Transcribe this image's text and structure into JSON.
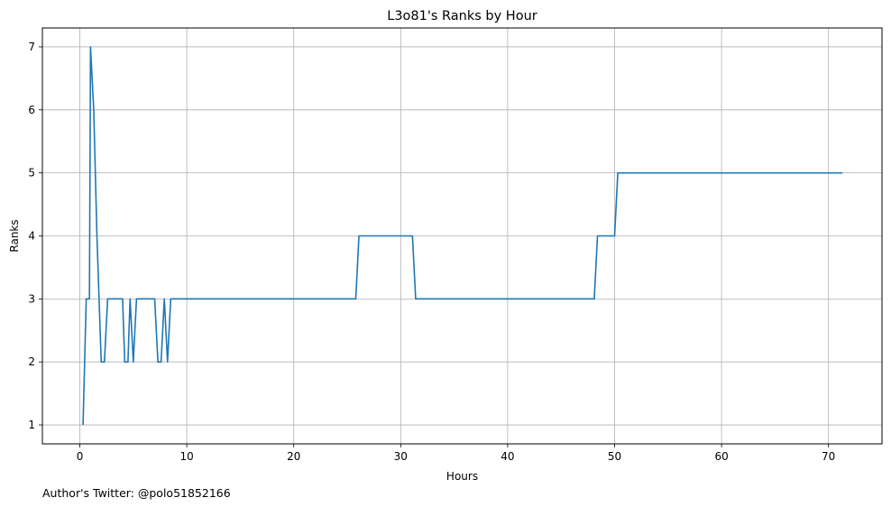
{
  "chart_data": {
    "type": "line",
    "title": "L3o81's Ranks by Hour",
    "xlabel": "Hours",
    "ylabel": "Ranks",
    "xlim": [
      -3.5,
      75
    ],
    "ylim": [
      0.7,
      7.3
    ],
    "xticks": [
      0,
      10,
      20,
      30,
      40,
      50,
      60,
      70
    ],
    "yticks": [
      1,
      2,
      3,
      4,
      5,
      6,
      7
    ],
    "grid": true,
    "line_color": "#1f77b4",
    "grid_color": "#b0b0b0",
    "series": [
      {
        "x": [
          0.3,
          0.6,
          0.9,
          1.0,
          1.3,
          1.6,
          2.0,
          2.3,
          2.6,
          3.0,
          3.5,
          4.0,
          4.2,
          4.5,
          4.7,
          5.0,
          5.3,
          6.0,
          7.0,
          7.3,
          7.6,
          7.9,
          8.2,
          8.5,
          9.0,
          10,
          15,
          20,
          25.8,
          26.1,
          30,
          31.1,
          31.4,
          35,
          40,
          45,
          48.1,
          48.4,
          50.0,
          50.3,
          55,
          60,
          65,
          71.3
        ],
        "y": [
          1,
          3,
          3,
          7,
          6,
          4,
          2,
          2,
          3,
          3,
          3,
          3,
          2,
          2,
          3,
          2,
          3,
          3,
          3,
          2,
          2,
          3,
          2,
          3,
          3,
          3,
          3,
          3,
          3,
          4,
          4,
          4,
          3,
          3,
          3,
          3,
          3,
          4,
          4,
          5,
          5,
          5,
          5,
          5
        ]
      }
    ]
  },
  "footer": {
    "credit": "Author's Twitter: @polo51852166"
  }
}
